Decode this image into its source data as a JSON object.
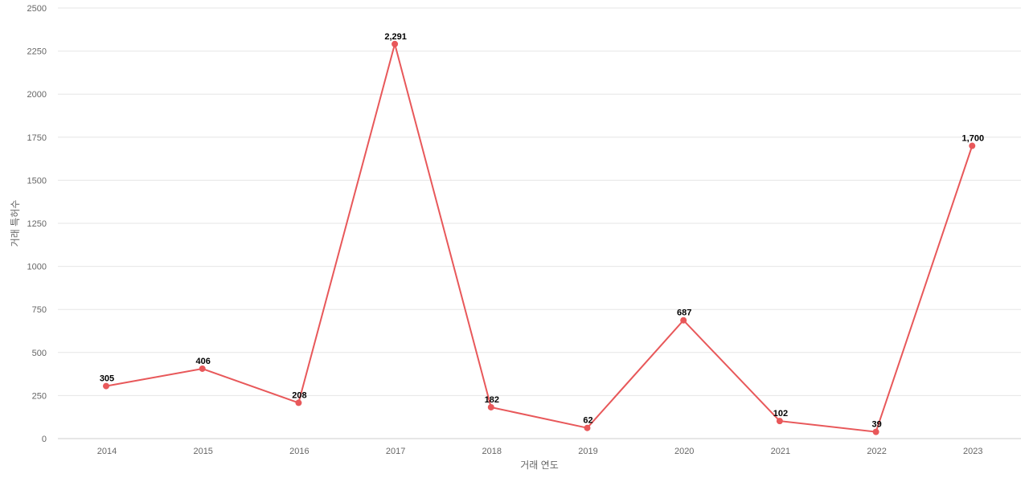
{
  "chart_data": {
    "type": "line",
    "title": "",
    "xlabel": "거래 연도",
    "ylabel": "거래 특허수",
    "x": [
      "2014",
      "2015",
      "2016",
      "2017",
      "2018",
      "2019",
      "2020",
      "2021",
      "2022",
      "2023"
    ],
    "series": [
      {
        "values": [
          305,
          406,
          208,
          2291,
          182,
          62,
          687,
          102,
          39,
          1700
        ],
        "data_labels": [
          "305",
          "406",
          "208",
          "2,291",
          "182",
          "62",
          "687",
          "102",
          "39",
          "1,700"
        ],
        "color": "#e8585a"
      }
    ],
    "yticks": [
      "0",
      "250",
      "500",
      "750",
      "1000",
      "1250",
      "1500",
      "1750",
      "2000",
      "2250",
      "2500"
    ],
    "ylim": [
      0,
      2500
    ],
    "grid": true,
    "legend": "none"
  }
}
